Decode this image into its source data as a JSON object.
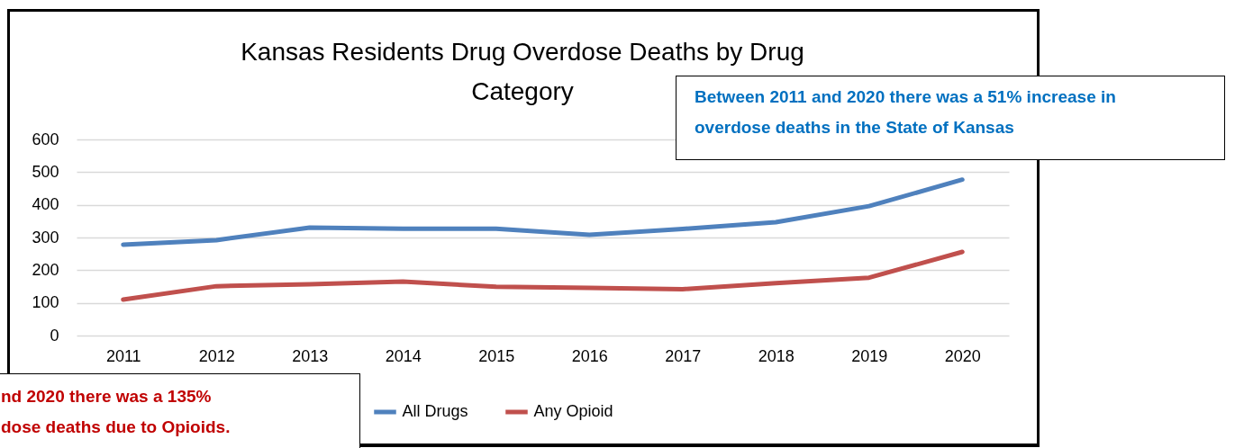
{
  "chart_data": {
    "type": "line",
    "title": "Kansas Residents Drug Overdose Deaths by Drug Category",
    "categories": [
      "2011",
      "2012",
      "2013",
      "2014",
      "2015",
      "2016",
      "2017",
      "2018",
      "2019",
      "2020"
    ],
    "series": [
      {
        "name": "All Drugs",
        "color": "#4f81bd",
        "values": [
          278,
          292,
          330,
          327,
          327,
          308,
          326,
          347,
          396,
          477
        ]
      },
      {
        "name": "Any Opioid",
        "color": "#c0504d",
        "values": [
          110,
          151,
          157,
          165,
          149,
          146,
          142,
          160,
          177,
          256
        ]
      }
    ],
    "ylim": [
      0,
      600
    ],
    "yticks": [
      0,
      100,
      200,
      300,
      400,
      500,
      600
    ],
    "grid": "y",
    "legend": "bottom",
    "marker": "none",
    "line_style": "solid",
    "annotations": [
      "Between 2011 and 2020 there was a 51% increase in\noverdose deaths in the State of Kansas",
      "nd 2020 there was a 135%\ndose deaths due to Opioids."
    ]
  }
}
